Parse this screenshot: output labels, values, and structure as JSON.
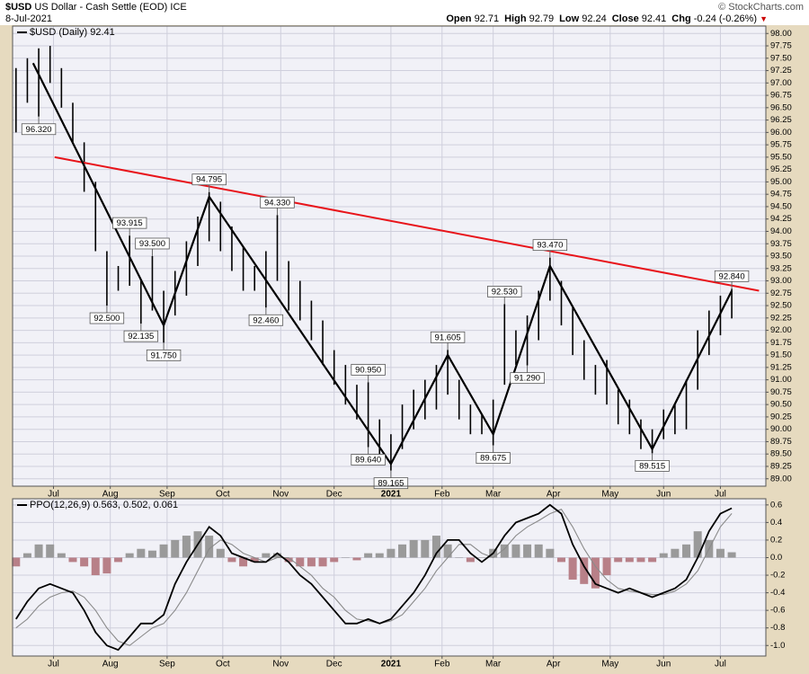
{
  "header": {
    "symbol": "$USD",
    "description": "US Dollar - Cash Settle (EOD) ICE",
    "date": "8-Jul-2021",
    "credit": "© StockCharts.com",
    "quote": [
      {
        "label": "Open",
        "value": 92.71
      },
      {
        "label": "High",
        "value": 92.79
      },
      {
        "label": "Low",
        "value": 92.24
      },
      {
        "label": "Close",
        "value": 92.41
      },
      {
        "label": "Chg",
        "value": -0.24
      }
    ],
    "chg_pct": "(-0.26%)"
  },
  "chart_data": [
    {
      "type": "range-bar",
      "legend": "$USD (Daily) 92.41",
      "color": "#000000",
      "grid": true,
      "xlim": [
        -0.3,
        66
      ],
      "xticks": [
        {
          "value": 3.3,
          "label": "Jul"
        },
        {
          "value": 8.3,
          "label": "Aug"
        },
        {
          "value": 13.3,
          "label": "Sep"
        },
        {
          "value": 18.2,
          "label": "Oct"
        },
        {
          "value": 23.3,
          "label": "Nov"
        },
        {
          "value": 28.0,
          "label": "Dec"
        },
        {
          "value": 33.0,
          "label": "2021"
        },
        {
          "value": 37.5,
          "label": "Feb"
        },
        {
          "value": 42.0,
          "label": "Mar"
        },
        {
          "value": 47.3,
          "label": "Apr"
        },
        {
          "value": 52.3,
          "label": "May"
        },
        {
          "value": 57.0,
          "label": "Jun"
        },
        {
          "value": 62.0,
          "label": "Jul"
        }
      ],
      "ylim": [
        88.85,
        98.15
      ],
      "yticks": [
        {
          "value": 89,
          "label": "89.00"
        },
        {
          "value": 89.25,
          "label": "89.25"
        },
        {
          "value": 89.5,
          "label": "89.50"
        },
        {
          "value": 89.75,
          "label": "89.75"
        },
        {
          "value": 90,
          "label": "90.00"
        },
        {
          "value": 90.25,
          "label": "90.25"
        },
        {
          "value": 90.5,
          "label": "90.50"
        },
        {
          "value": 90.75,
          "label": "90.75"
        },
        {
          "value": 91,
          "label": "91.00"
        },
        {
          "value": 91.25,
          "label": "91.25"
        },
        {
          "value": 91.5,
          "label": "91.50"
        },
        {
          "value": 91.75,
          "label": "91.75"
        },
        {
          "value": 92,
          "label": "92.00"
        },
        {
          "value": 92.25,
          "label": "92.25"
        },
        {
          "value": 92.5,
          "label": "92.50"
        },
        {
          "value": 92.75,
          "label": "92.75"
        },
        {
          "value": 93,
          "label": "93.00"
        },
        {
          "value": 93.25,
          "label": "93.25"
        },
        {
          "value": 93.5,
          "label": "93.50"
        },
        {
          "value": 93.75,
          "label": "93.75"
        },
        {
          "value": 94,
          "label": "94.00"
        },
        {
          "value": 94.25,
          "label": "94.25"
        },
        {
          "value": 94.5,
          "label": "94.50"
        },
        {
          "value": 94.75,
          "label": "94.75"
        },
        {
          "value": 95,
          "label": "95.00"
        },
        {
          "value": 95.25,
          "label": "95.25"
        },
        {
          "value": 95.5,
          "label": "95.50"
        },
        {
          "value": 95.75,
          "label": "95.75"
        },
        {
          "value": 96,
          "label": "96.00"
        },
        {
          "value": 96.25,
          "label": "96.25"
        },
        {
          "value": 96.5,
          "label": "96.50"
        },
        {
          "value": 96.75,
          "label": "96.75"
        },
        {
          "value": 97,
          "label": "97.00"
        },
        {
          "value": 97.25,
          "label": "97.25"
        },
        {
          "value": 97.5,
          "label": "97.50"
        },
        {
          "value": 97.75,
          "label": "97.75"
        },
        {
          "value": 98,
          "label": "98.00"
        }
      ],
      "high": [
        97.3,
        97.5,
        97.7,
        97.75,
        97.3,
        96.6,
        95.8,
        95.0,
        93.6,
        93.3,
        93.915,
        93.0,
        93.5,
        92.8,
        93.2,
        93.8,
        94.3,
        94.795,
        94.6,
        94.1,
        93.7,
        93.3,
        93.6,
        94.33,
        93.4,
        93.0,
        92.6,
        92.2,
        91.6,
        91.3,
        90.9,
        90.95,
        90.2,
        89.9,
        90.5,
        90.8,
        91.0,
        91.3,
        91.605,
        91.0,
        90.5,
        90.3,
        90.6,
        92.53,
        92.0,
        92.3,
        92.8,
        93.47,
        93.0,
        92.5,
        91.8,
        91.3,
        91.4,
        90.8,
        90.6,
        90.2,
        90.0,
        90.4,
        90.5,
        91.0,
        92.0,
        92.4,
        92.7,
        92.84
      ],
      "low": [
        96.0,
        96.6,
        96.32,
        97.0,
        96.5,
        95.8,
        94.8,
        93.6,
        92.5,
        92.8,
        92.9,
        92.135,
        92.4,
        91.75,
        92.3,
        92.7,
        93.3,
        93.8,
        93.6,
        93.2,
        92.8,
        92.8,
        92.46,
        93.0,
        92.4,
        92.2,
        91.8,
        91.3,
        90.9,
        90.5,
        90.2,
        89.64,
        89.5,
        89.165,
        89.6,
        90.0,
        90.2,
        90.4,
        90.7,
        90.2,
        89.9,
        89.9,
        89.675,
        90.9,
        91.3,
        91.29,
        91.8,
        92.6,
        92.1,
        91.5,
        91.0,
        90.7,
        90.5,
        90.1,
        89.9,
        89.6,
        89.515,
        89.8,
        89.9,
        90.0,
        90.8,
        91.5,
        91.9,
        92.24
      ],
      "annotations": [
        {
          "label": "96.320",
          "x": 2,
          "value": 96.32
        },
        {
          "label": "92.500",
          "x": 8,
          "value": 92.5
        },
        {
          "label": "93.915",
          "x": 10,
          "value": 93.915
        },
        {
          "label": "92.135",
          "x": 11,
          "value": 92.135
        },
        {
          "label": "93.500",
          "x": 12,
          "value": 93.5
        },
        {
          "label": "91.750",
          "x": 13,
          "value": 91.75
        },
        {
          "label": "94.795",
          "x": 17,
          "value": 94.795
        },
        {
          "label": "92.460",
          "x": 22,
          "value": 92.46
        },
        {
          "label": "94.330",
          "x": 23,
          "value": 94.33
        },
        {
          "label": "90.950",
          "x": 31,
          "value": 90.95
        },
        {
          "label": "89.640",
          "x": 31,
          "value": 89.64
        },
        {
          "label": "89.165",
          "x": 33,
          "value": 89.165
        },
        {
          "label": "91.605",
          "x": 38,
          "value": 91.605
        },
        {
          "label": "89.675",
          "x": 42,
          "value": 89.675
        },
        {
          "label": "92.530",
          "x": 43,
          "value": 92.53
        },
        {
          "label": "91.290",
          "x": 45,
          "value": 91.29
        },
        {
          "label": "93.470",
          "x": 47,
          "value": 93.47
        },
        {
          "label": "89.515",
          "x": 56,
          "value": 89.515
        },
        {
          "label": "92.840",
          "x": 63,
          "value": 92.84
        }
      ],
      "zigzag": {
        "color": "#000000",
        "x": [
          1.5,
          13,
          17,
          33,
          38,
          42,
          47,
          56,
          63
        ],
        "values": [
          97.4,
          92.1,
          94.7,
          89.3,
          91.5,
          89.9,
          93.3,
          89.6,
          92.8
        ]
      },
      "trendline": {
        "color": "#e8141a",
        "x": [
          3.4,
          65.4
        ],
        "values": [
          95.5,
          92.8
        ]
      }
    },
    {
      "type": "ppo",
      "legend": "PPO(12,26,9) 0.563, 0.502, 0.061",
      "grid": true,
      "xlim": [
        -0.3,
        66
      ],
      "xticks": [
        {
          "value": 3.3,
          "label": "Jul"
        },
        {
          "value": 8.3,
          "label": "Aug"
        },
        {
          "value": 13.3,
          "label": "Sep"
        },
        {
          "value": 18.2,
          "label": "Oct"
        },
        {
          "value": 23.3,
          "label": "Nov"
        },
        {
          "value": 28.0,
          "label": "Dec"
        },
        {
          "value": 33.0,
          "label": "2021"
        },
        {
          "value": 37.5,
          "label": "Feb"
        },
        {
          "value": 42.0,
          "label": "Mar"
        },
        {
          "value": 47.3,
          "label": "Apr"
        },
        {
          "value": 52.3,
          "label": "May"
        },
        {
          "value": 57.0,
          "label": "Jun"
        },
        {
          "value": 62.0,
          "label": "Jul"
        }
      ],
      "ylim": [
        -1.12,
        0.67
      ],
      "yticks": [
        {
          "value": -1,
          "label": "-1.0"
        },
        -0.8,
        -0.6,
        -0.4,
        -0.2,
        {
          "value": 0,
          "label": "0.0"
        },
        0.2,
        0.4,
        0.6
      ],
      "ppo": {
        "color": "#000000",
        "values": [
          -0.7,
          -0.5,
          -0.35,
          -0.3,
          -0.35,
          -0.4,
          -0.6,
          -0.85,
          -1.0,
          -1.05,
          -0.9,
          -0.75,
          -0.75,
          -0.65,
          -0.3,
          -0.05,
          0.15,
          0.35,
          0.25,
          0.05,
          0.0,
          -0.05,
          -0.05,
          0.05,
          -0.05,
          -0.2,
          -0.3,
          -0.45,
          -0.6,
          -0.75,
          -0.75,
          -0.7,
          -0.75,
          -0.7,
          -0.55,
          -0.4,
          -0.2,
          0.05,
          0.2,
          0.2,
          0.05,
          -0.05,
          0.05,
          0.25,
          0.4,
          0.45,
          0.5,
          0.6,
          0.5,
          0.15,
          -0.1,
          -0.3,
          -0.35,
          -0.4,
          -0.35,
          -0.4,
          -0.45,
          -0.4,
          -0.35,
          -0.25,
          0.0,
          0.3,
          0.5,
          0.563
        ]
      },
      "signal": {
        "color": "#8a8a8a",
        "values": [
          -0.8,
          -0.7,
          -0.55,
          -0.45,
          -0.4,
          -0.38,
          -0.45,
          -0.6,
          -0.8,
          -0.95,
          -1.0,
          -0.9,
          -0.8,
          -0.75,
          -0.6,
          -0.4,
          -0.15,
          0.1,
          0.2,
          0.15,
          0.05,
          0.0,
          -0.05,
          0.0,
          0.0,
          -0.1,
          -0.2,
          -0.35,
          -0.45,
          -0.6,
          -0.7,
          -0.72,
          -0.75,
          -0.72,
          -0.65,
          -0.5,
          -0.35,
          -0.15,
          0.0,
          0.15,
          0.15,
          0.05,
          0.0,
          0.1,
          0.25,
          0.35,
          0.42,
          0.5,
          0.55,
          0.35,
          0.1,
          -0.1,
          -0.25,
          -0.35,
          -0.38,
          -0.4,
          -0.42,
          -0.42,
          -0.38,
          -0.3,
          -0.15,
          0.1,
          0.35,
          0.502
        ]
      },
      "histogram": {
        "colors": [
          "#9a9a9a",
          "#b88088"
        ],
        "values": [
          -0.1,
          0.05,
          0.15,
          0.15,
          0.05,
          -0.05,
          -0.1,
          -0.2,
          -0.18,
          -0.05,
          0.05,
          0.1,
          0.08,
          0.15,
          0.2,
          0.25,
          0.3,
          0.25,
          0.1,
          -0.05,
          -0.1,
          -0.05,
          0.05,
          0.05,
          -0.05,
          -0.1,
          -0.1,
          -0.1,
          -0.05,
          0.0,
          -0.03,
          0.05,
          0.05,
          0.1,
          0.15,
          0.2,
          0.2,
          0.25,
          0.15,
          0.0,
          -0.05,
          0.0,
          0.1,
          0.15,
          0.15,
          0.15,
          0.15,
          0.1,
          -0.05,
          -0.25,
          -0.3,
          -0.35,
          -0.2,
          -0.05,
          -0.05,
          -0.05,
          -0.05,
          0.05,
          0.1,
          0.15,
          0.3,
          0.2,
          0.1,
          0.061
        ]
      }
    }
  ]
}
